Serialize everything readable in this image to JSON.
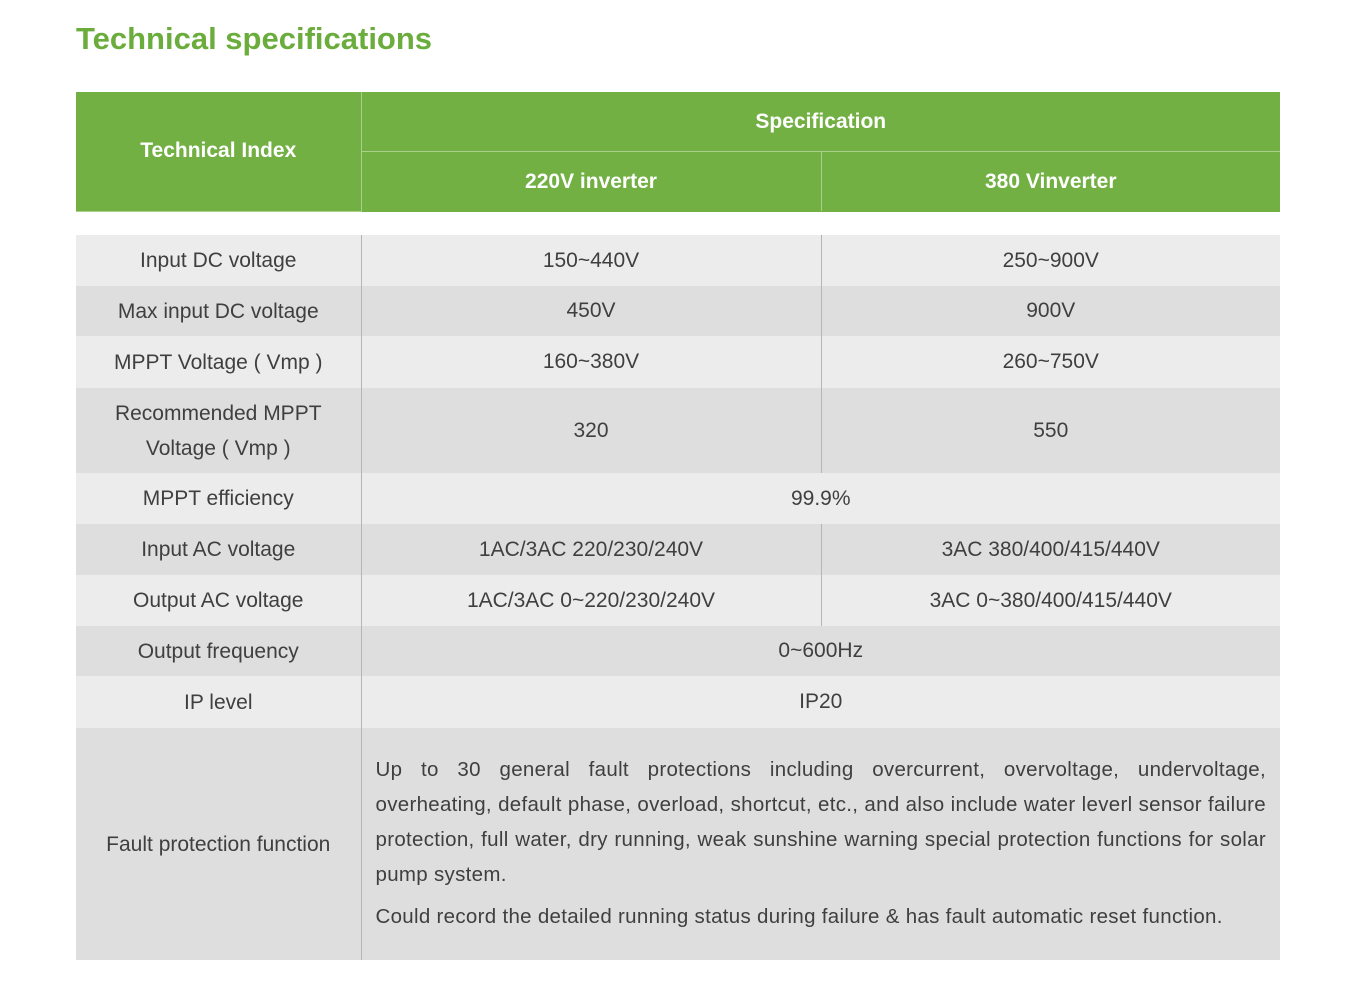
{
  "header": {
    "title": "Technical specifications"
  },
  "table": {
    "columns": {
      "index": "Technical Index",
      "spec": "Specification",
      "sub": [
        "220V inverter",
        "380 Vinverter"
      ]
    },
    "rows": [
      [
        "Input DC voltage",
        "150~440V",
        "250~900V"
      ],
      [
        "Max input DC voltage",
        "450V",
        "900V"
      ],
      [
        "MPPT Voltage ( Vmp )",
        "160~380V",
        "260~750V"
      ],
      [
        "Recommended MPPT Voltage ( Vmp )",
        "320",
        "550"
      ],
      [
        "MPPT efficiency",
        "99.9%"
      ],
      [
        "Input AC voltage",
        "1AC/3AC 220/230/240V",
        "3AC 380/400/415/440V"
      ],
      [
        "Output AC voltage",
        "1AC/3AC 0~220/230/240V",
        "3AC 0~380/400/415/440V"
      ],
      [
        "Output frequency",
        "0~600Hz"
      ],
      [
        "IP level",
        "IP20"
      ]
    ],
    "fault": {
      "label": "Fault protection function",
      "paragraphs": [
        "Up to 30 general fault protections including overcurrent, overvoltage, undervoltage, overheating, default phase, overload, shortcut, etc., and also include water leverl sensor failure protection, full water, dry running, weak sunshine warning special protection functions for solar pump system.",
        "Could record the detailed running status during failure & has fault automatic reset function."
      ]
    }
  }
}
